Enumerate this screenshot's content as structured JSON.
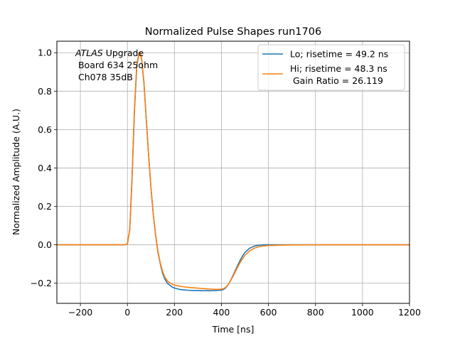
{
  "chart_data": {
    "type": "line",
    "title": "Normalized Pulse Shapes run1706",
    "xlabel": "Time [ns]",
    "ylabel": "Normalized Amplitude (A.U.)",
    "xlim": [
      -300,
      1200
    ],
    "ylim": [
      -0.305,
      1.06
    ],
    "xticks": [
      -200,
      0,
      200,
      400,
      600,
      800,
      1000,
      1200
    ],
    "xtick_labels": [
      "−200",
      "0",
      "200",
      "400",
      "600",
      "800",
      "1000",
      "1200"
    ],
    "yticks": [
      -0.2,
      0.0,
      0.2,
      0.4,
      0.6,
      0.8,
      1.0
    ],
    "ytick_labels": [
      "−0.2",
      "0.0",
      "0.2",
      "0.4",
      "0.6",
      "0.8",
      "1.0"
    ],
    "grid": true,
    "legend_position": "top-right",
    "annotation": {
      "line1_italic": "ATLAS",
      "line1_rest": " Upgrade",
      "line2": " Board 634 25ohm",
      "line3": " Ch078 35dB"
    },
    "series": [
      {
        "name": "Lo",
        "legend_label": "Lo; risetime = 49.2 ns",
        "color": "#1f77b4",
        "x": [
          -300,
          -250,
          -200,
          -150,
          -100,
          -50,
          -10,
          0,
          10,
          20,
          30,
          40,
          50,
          55,
          60,
          70,
          80,
          90,
          100,
          110,
          120,
          130,
          140,
          150,
          160,
          170,
          180,
          190,
          200,
          220,
          240,
          260,
          280,
          300,
          320,
          340,
          360,
          380,
          400,
          410,
          420,
          430,
          440,
          450,
          460,
          470,
          480,
          490,
          500,
          520,
          540,
          560,
          580,
          600,
          650,
          700,
          800,
          900,
          1000,
          1100,
          1200
        ],
        "y": [
          0.0,
          0.0,
          0.0,
          0.0,
          0.0,
          0.0,
          0.0,
          0.005,
          0.08,
          0.35,
          0.7,
          0.93,
          1.0,
          1.0,
          0.97,
          0.85,
          0.66,
          0.47,
          0.3,
          0.16,
          0.05,
          -0.04,
          -0.1,
          -0.15,
          -0.18,
          -0.2,
          -0.21,
          -0.22,
          -0.225,
          -0.232,
          -0.235,
          -0.237,
          -0.238,
          -0.238,
          -0.239,
          -0.239,
          -0.239,
          -0.238,
          -0.236,
          -0.232,
          -0.222,
          -0.205,
          -0.183,
          -0.158,
          -0.131,
          -0.105,
          -0.08,
          -0.058,
          -0.04,
          -0.018,
          -0.007,
          -0.002,
          0.0,
          0.0,
          0.0,
          0.0,
          0.0,
          0.0,
          0.0,
          0.0,
          0.0
        ]
      },
      {
        "name": "Hi",
        "legend_label": "Hi; risetime = 48.3 ns",
        "legend_label_2": " Gain Ratio = 26.119",
        "color": "#ff7f0e",
        "x": [
          -300,
          -250,
          -200,
          -150,
          -100,
          -50,
          -10,
          0,
          10,
          20,
          30,
          40,
          50,
          55,
          60,
          70,
          80,
          90,
          100,
          110,
          120,
          130,
          140,
          150,
          160,
          170,
          180,
          190,
          200,
          220,
          240,
          260,
          280,
          300,
          320,
          340,
          360,
          380,
          400,
          410,
          420,
          430,
          440,
          450,
          460,
          470,
          480,
          490,
          500,
          520,
          540,
          560,
          580,
          600,
          650,
          700,
          800,
          900,
          1000,
          1100,
          1200
        ],
        "y": [
          0.0,
          0.0,
          0.0,
          0.0,
          0.0,
          0.0,
          0.0,
          0.005,
          0.08,
          0.36,
          0.71,
          0.94,
          1.0,
          1.0,
          0.97,
          0.85,
          0.66,
          0.47,
          0.3,
          0.16,
          0.05,
          -0.035,
          -0.095,
          -0.14,
          -0.17,
          -0.188,
          -0.198,
          -0.205,
          -0.21,
          -0.215,
          -0.219,
          -0.222,
          -0.224,
          -0.226,
          -0.228,
          -0.23,
          -0.231,
          -0.232,
          -0.231,
          -0.228,
          -0.22,
          -0.205,
          -0.185,
          -0.162,
          -0.138,
          -0.114,
          -0.092,
          -0.072,
          -0.055,
          -0.032,
          -0.018,
          -0.01,
          -0.006,
          -0.004,
          -0.002,
          -0.001,
          0.0,
          0.0,
          0.0,
          0.0,
          0.0
        ]
      }
    ]
  }
}
